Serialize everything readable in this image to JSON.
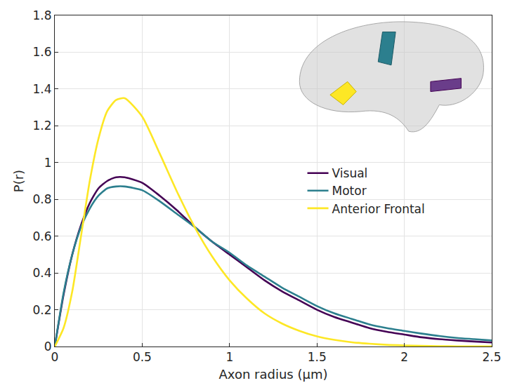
{
  "chart_data": {
    "type": "line",
    "x_label": "Axon radius (μm)",
    "y_label": "P(r)",
    "x": [
      0,
      0.05,
      0.1,
      0.15,
      0.2,
      0.25,
      0.3,
      0.35,
      0.4,
      0.5,
      0.6,
      0.7,
      0.8,
      0.9,
      1.0,
      1.1,
      1.2,
      1.3,
      1.4,
      1.5,
      1.6,
      1.7,
      1.8,
      1.9,
      2.0,
      2.1,
      2.2,
      2.3,
      2.4,
      2.5
    ],
    "series": [
      {
        "name": "Visual",
        "color": "#440154",
        "values": [
          0,
          0.28,
          0.5,
          0.66,
          0.78,
          0.86,
          0.9,
          0.92,
          0.92,
          0.89,
          0.82,
          0.74,
          0.65,
          0.57,
          0.5,
          0.43,
          0.36,
          0.3,
          0.25,
          0.2,
          0.16,
          0.13,
          0.1,
          0.08,
          0.065,
          0.05,
          0.04,
          0.033,
          0.027,
          0.022
        ]
      },
      {
        "name": "Motor",
        "color": "#2c7f8e",
        "values": [
          0,
          0.29,
          0.5,
          0.65,
          0.75,
          0.82,
          0.86,
          0.87,
          0.87,
          0.85,
          0.79,
          0.72,
          0.65,
          0.57,
          0.51,
          0.44,
          0.38,
          0.32,
          0.27,
          0.22,
          0.18,
          0.15,
          0.12,
          0.1,
          0.085,
          0.07,
          0.057,
          0.047,
          0.04,
          0.033
        ]
      },
      {
        "name": "Anterior Frontal",
        "color": "#fde725",
        "values": [
          0,
          0.1,
          0.3,
          0.6,
          0.9,
          1.13,
          1.28,
          1.34,
          1.35,
          1.25,
          1.05,
          0.84,
          0.65,
          0.49,
          0.36,
          0.26,
          0.18,
          0.125,
          0.085,
          0.055,
          0.036,
          0.023,
          0.015,
          0.009,
          0.006,
          0.004,
          0.002,
          0.001,
          0.0006,
          0.0003
        ]
      }
    ],
    "xlim": [
      0,
      2.5
    ],
    "xticks": [
      0,
      0.5,
      1,
      1.5,
      2,
      2.5
    ],
    "ylim": [
      0,
      1.8
    ],
    "yticks": [
      0,
      0.2,
      0.4,
      0.6,
      0.8,
      1,
      1.2,
      1.4,
      1.6,
      1.8
    ],
    "grid": true,
    "legend": "center right"
  }
}
